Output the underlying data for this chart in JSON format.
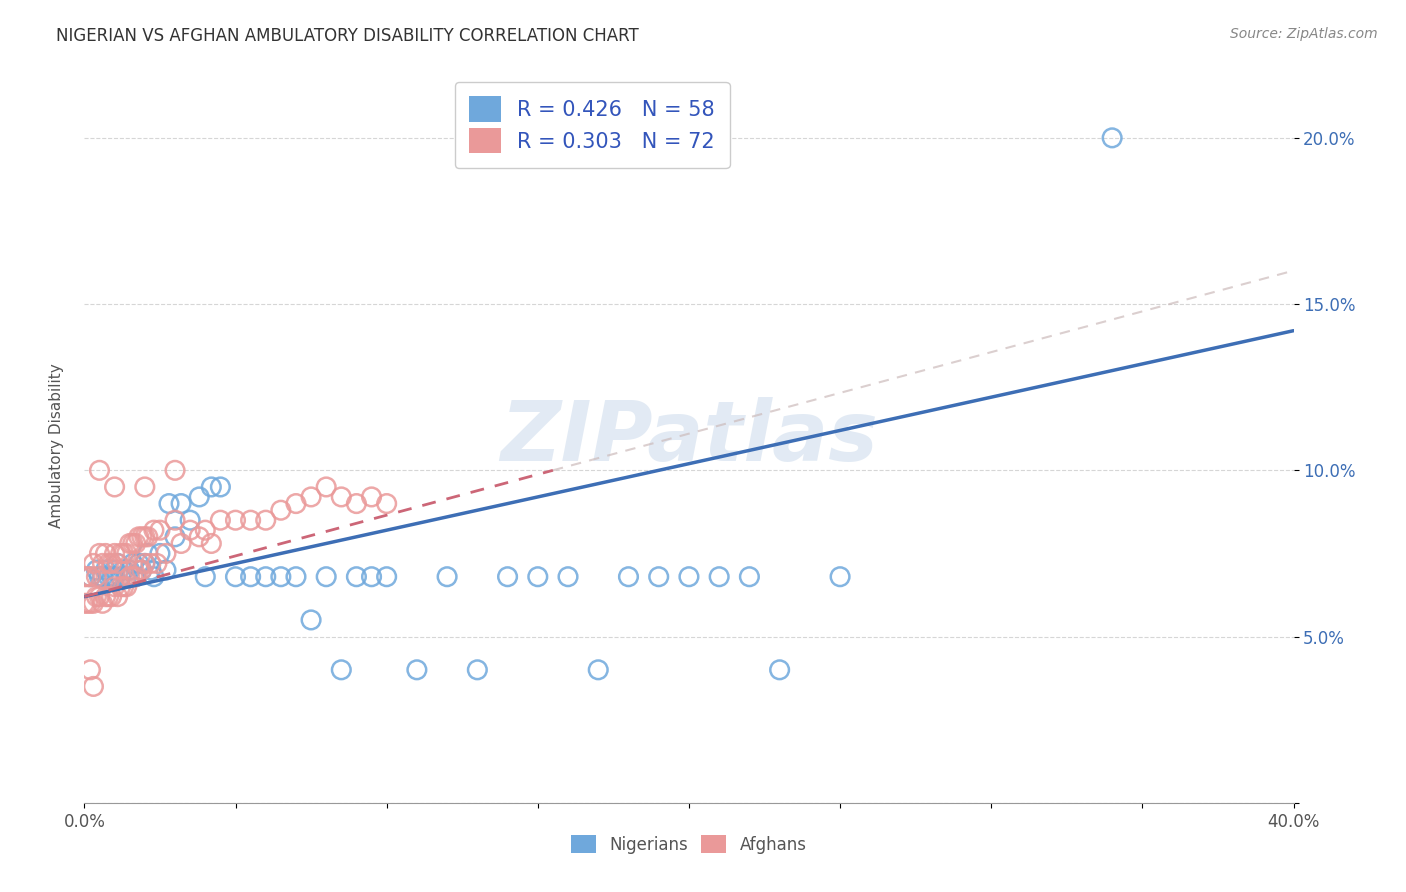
{
  "title": "NIGERIAN VS AFGHAN AMBULATORY DISABILITY CORRELATION CHART",
  "source": "Source: ZipAtlas.com",
  "ylabel": "Ambulatory Disability",
  "xlim": [
    0.0,
    0.4
  ],
  "ylim": [
    0.0,
    0.22
  ],
  "xticks": [
    0.0,
    0.05,
    0.1,
    0.15,
    0.2,
    0.25,
    0.3,
    0.35,
    0.4
  ],
  "yticks": [
    0.0,
    0.05,
    0.1,
    0.15,
    0.2
  ],
  "xtick_labels": [
    "0.0%",
    "",
    "",
    "",
    "",
    "",
    "",
    "",
    "40.0%"
  ],
  "ytick_labels": [
    "",
    "5.0%",
    "10.0%",
    "15.0%",
    "20.0%"
  ],
  "nigerian_color": "#6fa8dc",
  "afghan_color": "#ea9999",
  "nigerian_line_color": "#3d6eb5",
  "afghan_line_color": "#cc6677",
  "watermark": "ZIPatlas",
  "watermark_color": "#b8cce4",
  "legend_R_nigerian": "R = 0.426",
  "legend_N_nigerian": "N = 58",
  "legend_R_afghan": "R = 0.303",
  "legend_N_afghan": "N = 72",
  "nig_line_x0": 0.0,
  "nig_line_y0": 0.062,
  "nig_line_x1": 0.4,
  "nig_line_y1": 0.142,
  "afg_line_x0": 0.0,
  "afg_line_y0": 0.062,
  "afg_line_x1": 0.155,
  "afg_line_y1": 0.1,
  "nigerian_scatter_x": [
    0.002,
    0.004,
    0.005,
    0.006,
    0.007,
    0.008,
    0.009,
    0.01,
    0.01,
    0.011,
    0.012,
    0.013,
    0.014,
    0.015,
    0.016,
    0.017,
    0.018,
    0.019,
    0.02,
    0.021,
    0.022,
    0.023,
    0.025,
    0.027,
    0.028,
    0.03,
    0.032,
    0.035,
    0.038,
    0.04,
    0.042,
    0.045,
    0.05,
    0.055,
    0.06,
    0.065,
    0.07,
    0.075,
    0.08,
    0.085,
    0.09,
    0.095,
    0.1,
    0.11,
    0.12,
    0.13,
    0.14,
    0.15,
    0.16,
    0.17,
    0.18,
    0.19,
    0.2,
    0.21,
    0.22,
    0.23,
    0.25,
    0.34
  ],
  "nigerian_scatter_y": [
    0.068,
    0.07,
    0.068,
    0.068,
    0.07,
    0.068,
    0.068,
    0.07,
    0.068,
    0.072,
    0.068,
    0.07,
    0.068,
    0.07,
    0.072,
    0.068,
    0.072,
    0.07,
    0.072,
    0.075,
    0.07,
    0.068,
    0.075,
    0.07,
    0.09,
    0.08,
    0.09,
    0.085,
    0.092,
    0.068,
    0.095,
    0.095,
    0.068,
    0.068,
    0.068,
    0.068,
    0.068,
    0.055,
    0.068,
    0.04,
    0.068,
    0.068,
    0.068,
    0.04,
    0.068,
    0.04,
    0.068,
    0.068,
    0.068,
    0.04,
    0.068,
    0.068,
    0.068,
    0.068,
    0.068,
    0.04,
    0.068,
    0.2
  ],
  "afghan_scatter_x": [
    0.0,
    0.0,
    0.001,
    0.001,
    0.002,
    0.002,
    0.003,
    0.003,
    0.004,
    0.004,
    0.005,
    0.005,
    0.006,
    0.006,
    0.007,
    0.007,
    0.008,
    0.008,
    0.009,
    0.009,
    0.01,
    0.01,
    0.011,
    0.011,
    0.012,
    0.012,
    0.013,
    0.013,
    0.014,
    0.014,
    0.015,
    0.015,
    0.016,
    0.016,
    0.017,
    0.017,
    0.018,
    0.018,
    0.019,
    0.019,
    0.02,
    0.02,
    0.021,
    0.022,
    0.023,
    0.024,
    0.025,
    0.027,
    0.03,
    0.032,
    0.035,
    0.038,
    0.04,
    0.042,
    0.045,
    0.05,
    0.055,
    0.06,
    0.065,
    0.07,
    0.075,
    0.08,
    0.085,
    0.09,
    0.095,
    0.1,
    0.005,
    0.01,
    0.02,
    0.03,
    0.002,
    0.003
  ],
  "afghan_scatter_y": [
    0.068,
    0.06,
    0.068,
    0.06,
    0.068,
    0.06,
    0.072,
    0.06,
    0.068,
    0.062,
    0.075,
    0.062,
    0.072,
    0.06,
    0.075,
    0.062,
    0.072,
    0.062,
    0.072,
    0.062,
    0.075,
    0.065,
    0.072,
    0.062,
    0.075,
    0.065,
    0.075,
    0.065,
    0.075,
    0.065,
    0.078,
    0.068,
    0.078,
    0.068,
    0.078,
    0.068,
    0.08,
    0.07,
    0.08,
    0.07,
    0.08,
    0.072,
    0.08,
    0.072,
    0.082,
    0.072,
    0.082,
    0.075,
    0.085,
    0.078,
    0.082,
    0.08,
    0.082,
    0.078,
    0.085,
    0.085,
    0.085,
    0.085,
    0.088,
    0.09,
    0.092,
    0.095,
    0.092,
    0.09,
    0.092,
    0.09,
    0.1,
    0.095,
    0.095,
    0.1,
    0.04,
    0.035
  ]
}
